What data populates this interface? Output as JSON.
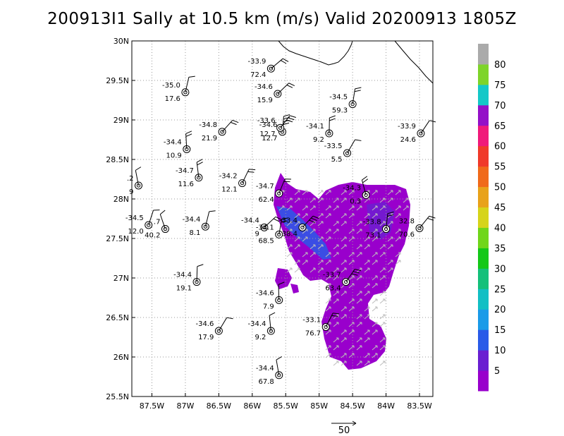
{
  "title": "200913I1 Sally at 10.5 km (m/s) Valid 20200913  1805Z",
  "chart_data": {
    "type": "scatter",
    "title": "200913I1 Sally at 10.5 km (m/s) Valid 20200913  1805Z",
    "xlim": [
      -87.8,
      -83.3
    ],
    "ylim": [
      25.5,
      30.0
    ],
    "x_ticks": [
      {
        "value": -87.5,
        "label": "87.5W"
      },
      {
        "value": -87.0,
        "label": "87W"
      },
      {
        "value": -86.5,
        "label": "86.5W"
      },
      {
        "value": -86.0,
        "label": "86W"
      },
      {
        "value": -85.5,
        "label": "85.5W"
      },
      {
        "value": -85.0,
        "label": "85W"
      },
      {
        "value": -84.5,
        "label": "84.5W"
      },
      {
        "value": -84.0,
        "label": "84W"
      },
      {
        "value": -83.5,
        "label": "83.5W"
      }
    ],
    "y_ticks": [
      {
        "value": 25.5,
        "label": "25.5N"
      },
      {
        "value": 26.0,
        "label": "26N"
      },
      {
        "value": 26.5,
        "label": "26.5N"
      },
      {
        "value": 27.0,
        "label": "27N"
      },
      {
        "value": 27.5,
        "label": "27.5N"
      },
      {
        "value": 28.0,
        "label": "28N"
      },
      {
        "value": 28.5,
        "label": "28.5N"
      },
      {
        "value": 29.0,
        "label": "29N"
      },
      {
        "value": 29.5,
        "label": "29.5N"
      },
      {
        "value": 30.0,
        "label": "30N"
      }
    ],
    "grid": true,
    "colorbar": {
      "labels": [
        "5",
        "10",
        "15",
        "20",
        "25",
        "30",
        "35",
        "40",
        "45",
        "50",
        "55",
        "60",
        "65",
        "70",
        "75",
        "80"
      ],
      "colors": [
        "#9900cc",
        "#6a1fd1",
        "#2a5be8",
        "#1a9be8",
        "#12bfc4",
        "#14c07a",
        "#14c818",
        "#70d61a",
        "#d6d41a",
        "#e8a21a",
        "#f06a1a",
        "#f03a2a",
        "#f01a7a",
        "#9410c8",
        "#14c8c8",
        "#7ed42a",
        "#aaaaaa"
      ]
    },
    "reference_arrow": {
      "label": "50"
    },
    "dropsondes": [
      {
        "lon": -85.72,
        "lat": 29.65,
        "top": "-33.9",
        "bottom": "72.4",
        "speed": 20
      },
      {
        "lon": -87.0,
        "lat": 29.35,
        "top": "-35.0",
        "bottom": "17.6",
        "speed": 5
      },
      {
        "lon": -85.62,
        "lat": 29.33,
        "top": "-34.6",
        "bottom": "15.9",
        "speed": 15
      },
      {
        "lon": -84.5,
        "lat": 29.2,
        "top": "-34.5",
        "bottom": "59.3",
        "speed": 15
      },
      {
        "lon": -86.45,
        "lat": 28.85,
        "top": "-34.8",
        "bottom": "21.9",
        "speed": 20
      },
      {
        "lon": -85.55,
        "lat": 28.85,
        "top": "-34.6",
        "bottom": "12.7",
        "speed": 60
      },
      {
        "lon": -85.58,
        "lat": 28.9,
        "top": "-33.6",
        "bottom": "12.7",
        "speed": 25
      },
      {
        "lon": -84.85,
        "lat": 28.83,
        "top": "-34.1",
        "bottom": "9.2",
        "speed": 15
      },
      {
        "lon": -83.48,
        "lat": 28.83,
        "top": "-33.9",
        "bottom": "24.6",
        "speed": 10
      },
      {
        "lon": -86.98,
        "lat": 28.63,
        "top": "-34.4",
        "bottom": "10.9",
        "speed": 15
      },
      {
        "lon": -84.58,
        "lat": 28.58,
        "top": "-33.5",
        "bottom": "5.5",
        "speed": 5
      },
      {
        "lon": -86.8,
        "lat": 28.27,
        "top": "-34.7",
        "bottom": "11.6",
        "speed": 15
      },
      {
        "lon": -86.15,
        "lat": 28.2,
        "top": "-34.2",
        "bottom": "12.1",
        "speed": 20
      },
      {
        "lon": -87.7,
        "lat": 28.17,
        "top": ".2",
        "bottom": "9",
        "speed": 10
      },
      {
        "lon": -85.6,
        "lat": 28.07,
        "top": "-34.7",
        "bottom": "62.4",
        "speed": 15
      },
      {
        "lon": -84.3,
        "lat": 28.05,
        "top": "-34.3",
        "bottom": "0.3",
        "speed": 20
      },
      {
        "lon": -87.55,
        "lat": 27.67,
        "top": "-34.5",
        "bottom": "12.0",
        "speed": 10
      },
      {
        "lon": -87.3,
        "lat": 27.62,
        "top": ".7",
        "bottom": "40.2",
        "speed": 5
      },
      {
        "lon": -86.7,
        "lat": 27.65,
        "top": "-34.4",
        "bottom": "8.1",
        "speed": 5
      },
      {
        "lon": -85.82,
        "lat": 27.64,
        "top": "-34.4",
        "bottom": "9",
        "speed": 15
      },
      {
        "lon": -85.6,
        "lat": 27.55,
        "top": "-34.1",
        "bottom": "68.5",
        "speed": 15
      },
      {
        "lon": -85.25,
        "lat": 27.64,
        "top": "-33.4",
        "bottom": "38.4",
        "speed": 25
      },
      {
        "lon": -84.0,
        "lat": 27.62,
        "top": "-33.8",
        "bottom": "73.1",
        "speed": 15
      },
      {
        "lon": -83.5,
        "lat": 27.63,
        "top": "32.8",
        "bottom": "70.6",
        "speed": 20
      },
      {
        "lon": -86.83,
        "lat": 26.95,
        "top": "-34.4",
        "bottom": "19.1",
        "speed": 10
      },
      {
        "lon": -84.6,
        "lat": 26.95,
        "top": "-33.7",
        "bottom": "63.4",
        "speed": 30
      },
      {
        "lon": -85.6,
        "lat": 26.72,
        "top": "-34.6",
        "bottom": "7.9",
        "speed": 5
      },
      {
        "lon": -86.5,
        "lat": 26.33,
        "top": "-34.6",
        "bottom": "17.9",
        "speed": 10
      },
      {
        "lon": -85.72,
        "lat": 26.33,
        "top": "-34.4",
        "bottom": "9.2",
        "speed": 10
      },
      {
        "lon": -84.9,
        "lat": 26.38,
        "top": "-33.1",
        "bottom": "76.7",
        "speed": 20
      },
      {
        "lon": -85.6,
        "lat": 25.77,
        "top": "-34.4",
        "bottom": "67.8",
        "speed": 10
      }
    ]
  }
}
